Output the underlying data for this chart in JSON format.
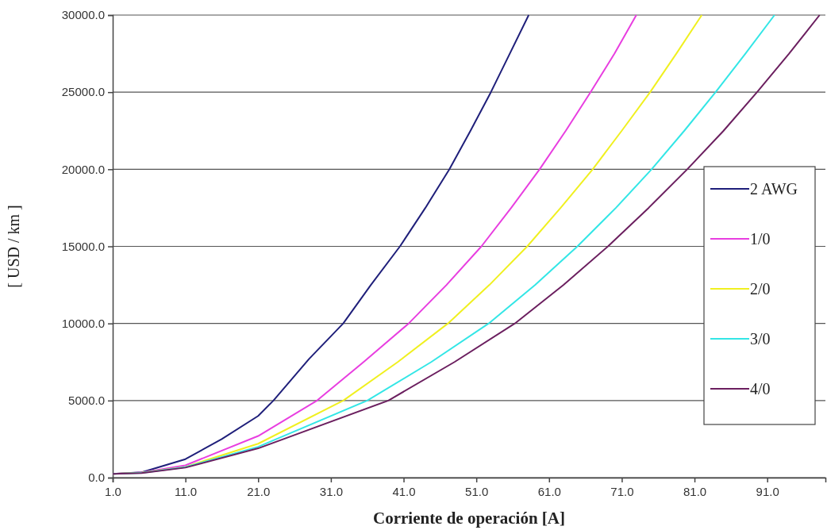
{
  "chart_data": {
    "type": "line",
    "xlabel": "Corriente de operación [A]",
    "ylabel": "[ USD / km ]",
    "xlim": [
      1,
      99
    ],
    "xticks": [
      {
        "value": 1,
        "label": "1.0"
      },
      {
        "value": 11,
        "label": "11.0"
      },
      {
        "value": 21,
        "label": "21.0"
      },
      {
        "value": 31,
        "label": "31.0"
      },
      {
        "value": 41,
        "label": "41.0"
      },
      {
        "value": 51,
        "label": "51.0"
      },
      {
        "value": 61,
        "label": "61.0"
      },
      {
        "value": 71,
        "label": "71.0"
      },
      {
        "value": 81,
        "label": "81.0"
      },
      {
        "value": 91,
        "label": "91.0"
      }
    ],
    "ylim": [
      0,
      30000
    ],
    "yticks": [
      {
        "value": 0,
        "label": "0.0"
      },
      {
        "value": 5000,
        "label": "5000.0"
      },
      {
        "value": 10000,
        "label": "10000.0"
      },
      {
        "value": 15000,
        "label": "15000.0"
      },
      {
        "value": 20000,
        "label": "20000.0"
      },
      {
        "value": 25000,
        "label": "25000.0"
      },
      {
        "value": 30000,
        "label": "30000.0"
      }
    ],
    "grid": "y",
    "legend": "right",
    "marker": "none",
    "line_style": "solid",
    "series": [
      {
        "name": "2 AWG",
        "color": "#1f1f7a",
        "x": [
          1,
          5,
          11,
          16,
          21,
          23.1,
          28,
          32.7,
          36.5,
          40.5,
          44,
          47.3,
          50.2,
          53,
          55.6,
          58.2
        ],
        "values": [
          250,
          350,
          1200,
          2500,
          4000,
          5000,
          7700,
          10000,
          12500,
          15000,
          17500,
          20000,
          22500,
          25000,
          27500,
          30000
        ]
      },
      {
        "name": "1/0",
        "color": "#e83ee0",
        "x": [
          1,
          5,
          11,
          21,
          29.1,
          35.5,
          41.7,
          46.9,
          51.7,
          55.8,
          59.7,
          63.3,
          66.7,
          70,
          73
        ],
        "values": [
          250,
          330,
          800,
          2700,
          5000,
          7500,
          10000,
          12500,
          15000,
          17500,
          20000,
          22500,
          25000,
          27500,
          30000
        ]
      },
      {
        "name": "2/0",
        "color": "#f0f020",
        "x": [
          1,
          5,
          11,
          21,
          32.7,
          40.2,
          47.1,
          52.8,
          58,
          62.6,
          67,
          71,
          74.9,
          78.5,
          82
        ],
        "values": [
          250,
          320,
          700,
          2200,
          5000,
          7500,
          10000,
          12500,
          15000,
          17500,
          20000,
          22500,
          25000,
          27500,
          30000
        ]
      },
      {
        "name": "3/0",
        "color": "#33e6e6",
        "x": [
          1,
          5,
          11,
          21,
          36,
          44.8,
          52.7,
          59.1,
          64.9,
          70.2,
          75.1,
          79.6,
          83.9,
          88,
          92
        ],
        "values": [
          250,
          310,
          680,
          2000,
          5000,
          7500,
          10000,
          12500,
          15000,
          17500,
          20000,
          22500,
          25000,
          27500,
          30000
        ]
      },
      {
        "name": "4/0",
        "color": "#6b1f5f",
        "x": [
          1,
          5,
          11,
          21,
          38.9,
          48,
          56.3,
          63,
          69.1,
          74.7,
          80,
          85,
          89.6,
          94,
          98.2
        ],
        "values": [
          250,
          300,
          650,
          1900,
          5000,
          7500,
          10000,
          12500,
          15000,
          17500,
          20000,
          22500,
          25000,
          27500,
          30000
        ]
      }
    ]
  }
}
